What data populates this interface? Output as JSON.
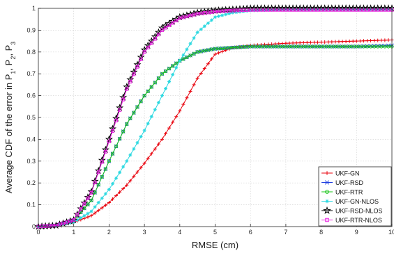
{
  "chart_data": {
    "type": "line",
    "xlabel": "RMSE (cm)",
    "ylabel": "Average CDF of the error in P",
    "ylabel_subscripts": [
      "1",
      "2",
      "3"
    ],
    "xlim": [
      0,
      10
    ],
    "ylim": [
      0,
      1
    ],
    "xticks": [
      "0",
      "1",
      "2",
      "3",
      "4",
      "5",
      "6",
      "7",
      "8",
      "9",
      "10"
    ],
    "yticks": [
      "0",
      "0.1",
      "0.2",
      "0.3",
      "0.4",
      "0.5",
      "0.6",
      "0.7",
      "0.8",
      "0.9",
      "1"
    ],
    "grid": true,
    "legend_position": "bottom-right",
    "series": [
      {
        "name": "UKF-GN",
        "color": "#e8000b",
        "marker": "plus",
        "x": [
          0,
          0.5,
          1,
          1.5,
          2,
          2.5,
          3,
          3.5,
          4,
          4.5,
          5,
          5.5,
          6,
          7,
          8,
          9,
          10
        ],
        "y": [
          0,
          0.005,
          0.02,
          0.05,
          0.11,
          0.19,
          0.29,
          0.4,
          0.53,
          0.68,
          0.79,
          0.82,
          0.83,
          0.84,
          0.845,
          0.85,
          0.855
        ]
      },
      {
        "name": "UKF-RSD",
        "color": "#1f3fe0",
        "marker": "x",
        "x": [
          0,
          0.5,
          1,
          1.5,
          2,
          2.5,
          3,
          3.5,
          4,
          4.5,
          5,
          5.5,
          6,
          7,
          8,
          9,
          10
        ],
        "y": [
          0,
          0.005,
          0.03,
          0.12,
          0.3,
          0.47,
          0.6,
          0.7,
          0.76,
          0.8,
          0.815,
          0.82,
          0.825,
          0.825,
          0.825,
          0.825,
          0.83
        ]
      },
      {
        "name": "UKF-RTR",
        "color": "#17c417",
        "marker": "circle",
        "x": [
          0,
          0.5,
          1,
          1.5,
          2,
          2.5,
          3,
          3.5,
          4,
          4.5,
          5,
          5.5,
          6,
          7,
          8,
          9,
          10
        ],
        "y": [
          0,
          0.005,
          0.03,
          0.12,
          0.3,
          0.47,
          0.6,
          0.7,
          0.76,
          0.8,
          0.815,
          0.82,
          0.825,
          0.825,
          0.825,
          0.825,
          0.825
        ]
      },
      {
        "name": "UKF-GN-NLOS",
        "color": "#2ad8e0",
        "marker": "star",
        "x": [
          0,
          0.5,
          1,
          1.5,
          2,
          2.5,
          3,
          3.5,
          4,
          4.5,
          5,
          5.5,
          6,
          7,
          8,
          9,
          10
        ],
        "y": [
          0,
          0.005,
          0.02,
          0.07,
          0.17,
          0.3,
          0.44,
          0.6,
          0.76,
          0.89,
          0.96,
          0.98,
          0.99,
          0.995,
          0.995,
          0.995,
          0.995
        ]
      },
      {
        "name": "UKF-RSD-NLOS",
        "color": "#000000",
        "marker": "pentagram",
        "x": [
          0,
          0.5,
          1,
          1.5,
          2,
          2.5,
          3,
          3.5,
          4,
          4.5,
          5,
          5.5,
          6,
          7,
          8,
          9,
          10
        ],
        "y": [
          0,
          0.005,
          0.03,
          0.16,
          0.4,
          0.64,
          0.81,
          0.91,
          0.96,
          0.98,
          0.99,
          0.995,
          1.0,
          1.0,
          1.0,
          1.0,
          1.0
        ]
      },
      {
        "name": "UKF-RTR-NLOS",
        "color": "#e81ee0",
        "marker": "square",
        "x": [
          0,
          0.5,
          1,
          1.5,
          2,
          2.5,
          3,
          3.5,
          4,
          4.5,
          5,
          5.5,
          6,
          7,
          8,
          9,
          10
        ],
        "y": [
          0,
          0.005,
          0.03,
          0.155,
          0.39,
          0.63,
          0.8,
          0.9,
          0.955,
          0.975,
          0.985,
          0.99,
          0.993,
          0.993,
          0.993,
          0.993,
          0.993
        ]
      }
    ]
  }
}
